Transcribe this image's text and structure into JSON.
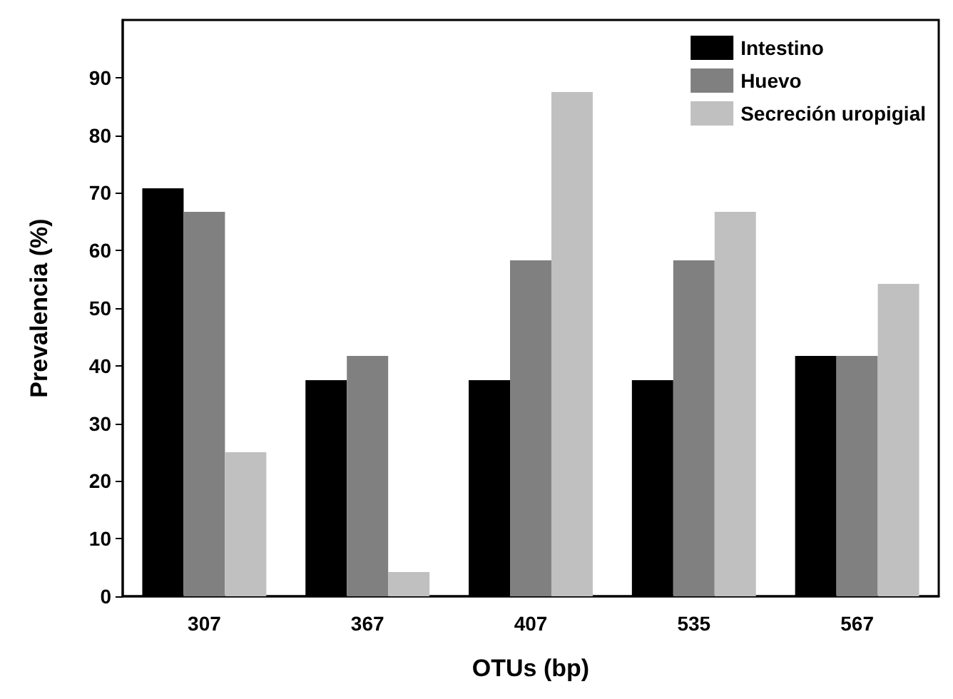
{
  "chart_data": {
    "type": "bar",
    "xlabel": "OTUs (bp)",
    "ylabel": "Prevalencia (%)",
    "categories": [
      "307",
      "367",
      "407",
      "535",
      "567"
    ],
    "series": [
      {
        "name": "Intestino",
        "color": "#000000",
        "values": [
          70.8,
          37.5,
          37.5,
          37.5,
          41.7
        ]
      },
      {
        "name": "Huevo",
        "color": "#808080",
        "values": [
          66.7,
          41.7,
          58.3,
          58.3,
          41.7
        ]
      },
      {
        "name": "Secreción uropigial",
        "color": "#c0c0c0",
        "values": [
          25,
          4.2,
          87.5,
          66.7,
          54.2
        ]
      }
    ],
    "ylim": [
      0,
      100
    ],
    "yticks": [
      0,
      10,
      20,
      30,
      40,
      50,
      60,
      70,
      80,
      90
    ],
    "grid": false,
    "legend": "top right"
  }
}
